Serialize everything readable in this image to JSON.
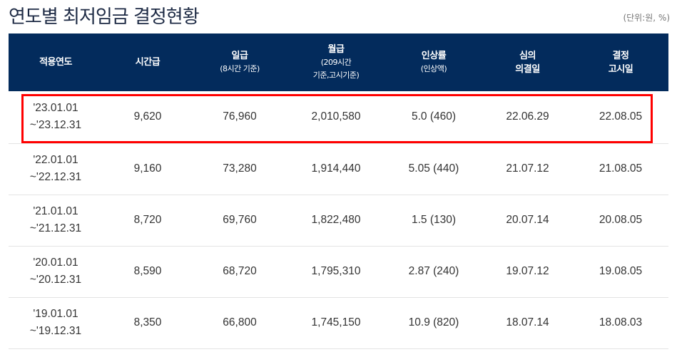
{
  "title": "연도별 최저임금 결정현황",
  "unit_note": "(단위:원, %)",
  "headers": {
    "year": "적용연도",
    "hourly": "시간급",
    "daily": "일급",
    "daily_sub": "(8시간 기준)",
    "monthly": "월급",
    "monthly_sub1": "(209시간",
    "monthly_sub2": "기준,고시기준)",
    "increase": "인상률",
    "increase_sub": "(인상액)",
    "decision1": "심의",
    "decision2": "의결일",
    "notice1": "결정",
    "notice2": "고시일"
  },
  "rows": [
    {
      "start": "'23.01.01",
      "end": "~'23.12.31",
      "hourly": "9,620",
      "daily": "76,960",
      "monthly": "2,010,580",
      "increase": "5.0 (460)",
      "decided": "22.06.29",
      "noticed": "22.08.05"
    },
    {
      "start": "'22.01.01",
      "end": "~'22.12.31",
      "hourly": "9,160",
      "daily": "73,280",
      "monthly": "1,914,440",
      "increase": "5.05 (440)",
      "decided": "21.07.12",
      "noticed": "21.08.05"
    },
    {
      "start": "'21.01.01",
      "end": "~'21.12.31",
      "hourly": "8,720",
      "daily": "69,760",
      "monthly": "1,822,480",
      "increase": "1.5 (130)",
      "decided": "20.07.14",
      "noticed": "20.08.05"
    },
    {
      "start": "'20.01.01",
      "end": "~'20.12.31",
      "hourly": "8,590",
      "daily": "68,720",
      "monthly": "1,795,310",
      "increase": "2.87 (240)",
      "decided": "19.07.12",
      "noticed": "19.08.05"
    },
    {
      "start": "'19.01.01",
      "end": "~'19.12.31",
      "hourly": "8,350",
      "daily": "66,800",
      "monthly": "1,745,150",
      "increase": "10.9 (820)",
      "decided": "18.07.14",
      "noticed": "18.08.03"
    }
  ],
  "highlight_color": "#ff0000",
  "header_bg": "#032b5c"
}
